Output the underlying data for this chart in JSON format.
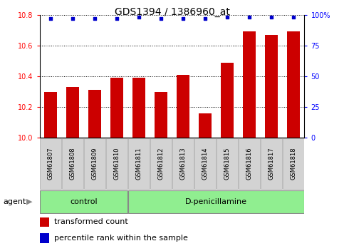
{
  "title": "GDS1394 / 1386960_at",
  "categories": [
    "GSM61807",
    "GSM61808",
    "GSM61809",
    "GSM61810",
    "GSM61811",
    "GSM61812",
    "GSM61813",
    "GSM61814",
    "GSM61815",
    "GSM61816",
    "GSM61817",
    "GSM61818"
  ],
  "bar_values": [
    10.3,
    10.33,
    10.31,
    10.39,
    10.39,
    10.3,
    10.41,
    10.16,
    10.49,
    10.69,
    10.67,
    10.69
  ],
  "percentile_values": [
    97,
    97,
    97,
    97,
    98,
    97,
    97,
    97,
    98,
    98,
    98,
    98
  ],
  "bar_color": "#cc0000",
  "dot_color": "#0000cc",
  "ylim_left": [
    10.0,
    10.8
  ],
  "ylim_right": [
    0,
    100
  ],
  "yticks_left": [
    10.0,
    10.2,
    10.4,
    10.6,
    10.8
  ],
  "yticks_right": [
    0,
    25,
    50,
    75,
    100
  ],
  "ytick_labels_right": [
    "0",
    "25",
    "50",
    "75",
    "100%"
  ],
  "n_control": 4,
  "n_treatment": 8,
  "control_label": "control",
  "treatment_label": "D-penicillamine",
  "agent_label": "agent",
  "legend_bar_label": "transformed count",
  "legend_dot_label": "percentile rank within the sample",
  "bar_width": 0.6,
  "title_fontsize": 10,
  "tick_fontsize": 7,
  "label_fontsize": 8,
  "legend_fontsize": 8
}
